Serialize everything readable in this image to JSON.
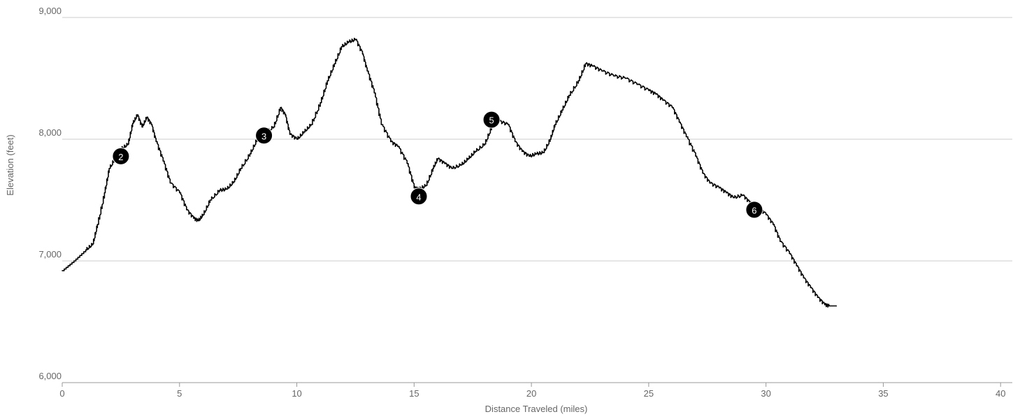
{
  "chart_data": {
    "type": "line",
    "xlabel": "Distance Traveled (miles)",
    "ylabel": "Elevation (feet)",
    "xlim": [
      0,
      40.5
    ],
    "ylim": [
      6000,
      9000
    ],
    "x_ticks": [
      {
        "value": 0,
        "label": "0"
      },
      {
        "value": 5,
        "label": "5"
      },
      {
        "value": 10,
        "label": "10"
      },
      {
        "value": 15,
        "label": "15"
      },
      {
        "value": 20,
        "label": "20"
      },
      {
        "value": 25,
        "label": "25"
      },
      {
        "value": 30,
        "label": "30"
      },
      {
        "value": 35,
        "label": "35"
      },
      {
        "value": 40,
        "label": "40"
      }
    ],
    "y_ticks": [
      {
        "value": 6000,
        "label": "6,000"
      },
      {
        "value": 7000,
        "label": "7,000"
      },
      {
        "value": 8000,
        "label": "8,000"
      },
      {
        "value": 9000,
        "label": "9,000"
      }
    ],
    "grid": true,
    "legend": "none",
    "line_color": "#000000",
    "series": [
      {
        "x": [
          0,
          0.5,
          1.0,
          1.3,
          1.5,
          1.8,
          2.0,
          2.3,
          2.5,
          2.8,
          3.0,
          3.2,
          3.4,
          3.6,
          3.8,
          4.0,
          4.3,
          4.6,
          5.0,
          5.3,
          5.6,
          5.8,
          6.0,
          6.3,
          6.7,
          7.0,
          7.3,
          7.6,
          8.0,
          8.3,
          8.6,
          9.0,
          9.3,
          9.5,
          9.7,
          10.0,
          10.3,
          10.6,
          11.0,
          11.3,
          11.6,
          11.9,
          12.2,
          12.5,
          12.8,
          13.0,
          13.3,
          13.6,
          14.0,
          14.3,
          14.7,
          15.0,
          15.2,
          15.5,
          15.8,
          16.0,
          16.3,
          16.6,
          17.0,
          17.3,
          17.6,
          18.0,
          18.3,
          18.6,
          19.0,
          19.3,
          19.6,
          19.9,
          20.2,
          20.5,
          20.8,
          21.0,
          21.3,
          21.6,
          22.0,
          22.3,
          22.6,
          23.0,
          23.5,
          24.0,
          24.5,
          25.0,
          25.3,
          25.6,
          26.0,
          26.3,
          26.6,
          27.0,
          27.3,
          27.6,
          28.0,
          28.3,
          28.6,
          29.0,
          29.3,
          29.6,
          30.0,
          30.3,
          30.6,
          31.0,
          31.3,
          31.6,
          31.9,
          32.2,
          32.5,
          32.7,
          33.0
        ],
        "y": [
          6920,
          7000,
          7090,
          7140,
          7300,
          7560,
          7760,
          7860,
          7920,
          7960,
          8130,
          8200,
          8100,
          8180,
          8120,
          7980,
          7820,
          7640,
          7560,
          7420,
          7350,
          7330,
          7380,
          7500,
          7580,
          7590,
          7650,
          7760,
          7880,
          8000,
          8050,
          8100,
          8260,
          8200,
          8040,
          8000,
          8060,
          8120,
          8300,
          8480,
          8620,
          8760,
          8800,
          8820,
          8700,
          8560,
          8380,
          8120,
          7980,
          7940,
          7800,
          7600,
          7590,
          7620,
          7760,
          7840,
          7800,
          7760,
          7790,
          7840,
          7900,
          7960,
          8100,
          8150,
          8120,
          7980,
          7900,
          7860,
          7880,
          7890,
          8000,
          8120,
          8240,
          8360,
          8480,
          8620,
          8600,
          8560,
          8520,
          8500,
          8450,
          8400,
          8370,
          8320,
          8260,
          8140,
          8020,
          7860,
          7720,
          7640,
          7600,
          7560,
          7520,
          7540,
          7480,
          7450,
          7380,
          7300,
          7160,
          7060,
          6960,
          6860,
          6780,
          6700,
          6640,
          6630,
          6630
        ]
      }
    ],
    "markers": [
      {
        "label": "2",
        "x": 2.5,
        "y": 7860
      },
      {
        "label": "3",
        "x": 8.6,
        "y": 8030
      },
      {
        "label": "4",
        "x": 15.2,
        "y": 7530
      },
      {
        "label": "5",
        "x": 18.3,
        "y": 8160
      },
      {
        "label": "6",
        "x": 29.5,
        "y": 7420
      }
    ]
  }
}
